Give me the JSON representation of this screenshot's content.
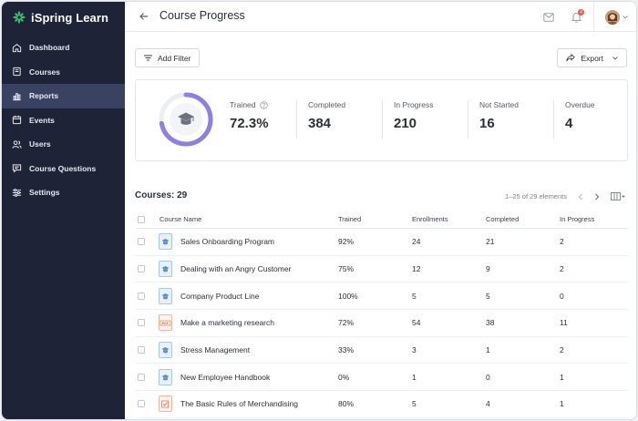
{
  "app": {
    "name": "iSpring Learn"
  },
  "sidebar": {
    "items": [
      {
        "label": "Dashboard",
        "icon": "home-icon"
      },
      {
        "label": "Courses",
        "icon": "book-icon"
      },
      {
        "label": "Reports",
        "icon": "bar-chart-icon",
        "active": true
      },
      {
        "label": "Events",
        "icon": "calendar-icon"
      },
      {
        "label": "Users",
        "icon": "users-icon"
      },
      {
        "label": "Course Questions",
        "icon": "chat-icon"
      },
      {
        "label": "Settings",
        "icon": "sliders-icon"
      }
    ]
  },
  "header": {
    "title": "Course Progress",
    "notifications_count": "4"
  },
  "toolbar": {
    "filter_label": "Add Filter",
    "export_label": "Export"
  },
  "stats": {
    "trained_fraction": 0.723,
    "items": [
      {
        "label": "Trained",
        "value": "72.3%"
      },
      {
        "label": "Completed",
        "value": "384"
      },
      {
        "label": "In Progress",
        "value": "210"
      },
      {
        "label": "Not Started",
        "value": "16"
      },
      {
        "label": "Overdue",
        "value": "4"
      }
    ]
  },
  "courses": {
    "title": "Courses: 29",
    "pagination": "1–25 of 29 elements",
    "columns": [
      "Course Name",
      "Trained",
      "Enrollments",
      "Completed",
      "In Progress"
    ],
    "rows": [
      {
        "name": "Sales Onboarding Program",
        "trained": "92%",
        "enrollments": "24",
        "completed": "21",
        "in_progress": "2",
        "type": "course"
      },
      {
        "name": "Dealing with an Angry Customer",
        "trained": "75%",
        "enrollments": "12",
        "completed": "9",
        "in_progress": "2",
        "type": "course"
      },
      {
        "name": "Company Product Line",
        "trained": "100%",
        "enrollments": "5",
        "completed": "5",
        "in_progress": "0",
        "type": "course"
      },
      {
        "name": "Make a marketing research",
        "trained": "72%",
        "enrollments": "54",
        "completed": "38",
        "in_progress": "11",
        "type": "pdf"
      },
      {
        "name": "Stress Management",
        "trained": "33%",
        "enrollments": "3",
        "completed": "1",
        "in_progress": "2",
        "type": "course"
      },
      {
        "name": "New Employee Handbook",
        "trained": "0%",
        "enrollments": "1",
        "completed": "0",
        "in_progress": "1",
        "type": "course"
      },
      {
        "name": "The Basic Rules of Merchandising",
        "trained": "80%",
        "enrollments": "5",
        "completed": "4",
        "in_progress": "1",
        "type": "assignment"
      }
    ]
  },
  "colors": {
    "sidebar_bg": "#1f2338",
    "sidebar_active": "#3a4262",
    "accent": "#8f7fe3",
    "brand_green": "#3dbd6b"
  }
}
